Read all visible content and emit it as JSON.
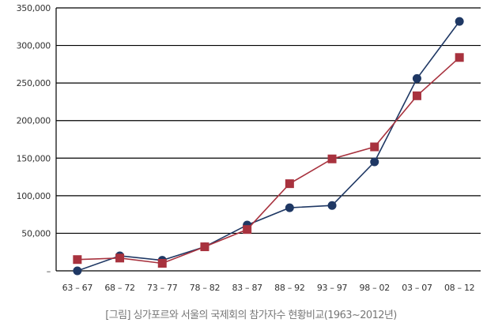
{
  "caption": "[그림] 싱가포르와 서울의 국제회의 참가자수 현황비교(1963~2012년)",
  "chart_data": {
    "type": "line",
    "categories": [
      "63 – 67",
      "68 – 72",
      "73 – 77",
      "78 – 82",
      "83 – 87",
      "88 – 92",
      "93 – 97",
      "98 – 02",
      "03 – 07",
      "08 – 12"
    ],
    "y_tick_labels": [
      "–",
      "50,000",
      "100,000",
      "150,000",
      "200,000",
      "250,000",
      "300,000",
      "350,000"
    ],
    "ylim": [
      0,
      350000
    ],
    "grid": true,
    "legend": "none",
    "series": [
      {
        "marker": "circle",
        "color": "#1f3864",
        "values": [
          0,
          20000,
          14000,
          32000,
          61000,
          84000,
          87000,
          145000,
          256000,
          332000
        ]
      },
      {
        "marker": "square",
        "color": "#a8323e",
        "values": [
          15000,
          17000,
          10000,
          32000,
          55000,
          116000,
          149000,
          165000,
          233000,
          284000
        ]
      }
    ]
  }
}
